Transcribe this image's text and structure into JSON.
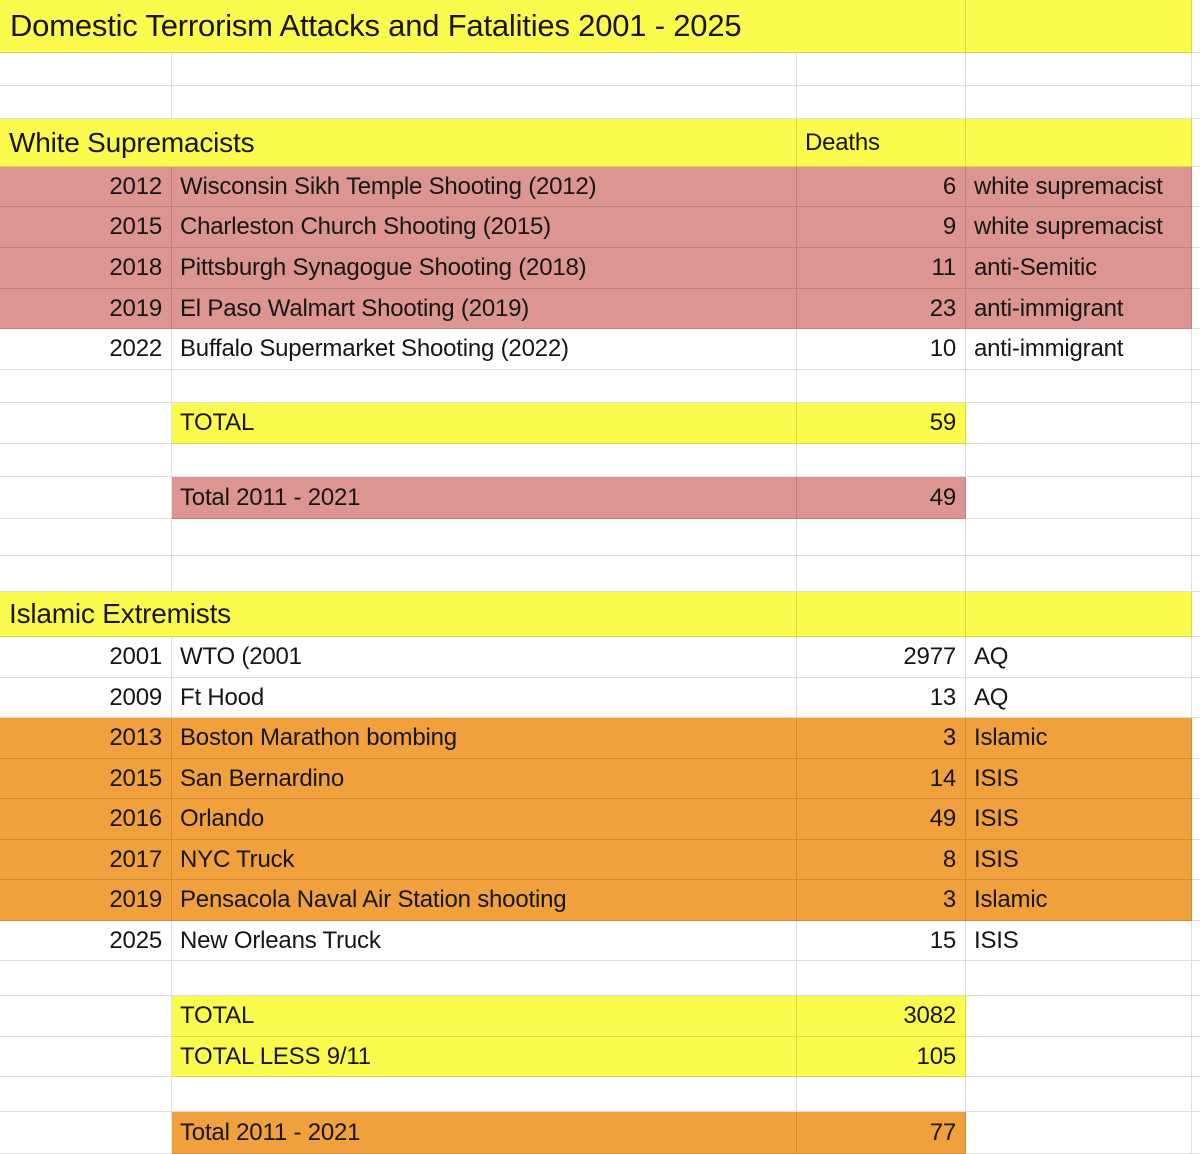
{
  "title": "Domestic Terrorism Attacks and Fatalities 2001 - 2025",
  "columns": {
    "deaths_header": "Deaths"
  },
  "colors": {
    "yellow": "#fbfb4d",
    "pink": "#dc9591",
    "orange": "#f0a03c",
    "white": "#ffffff",
    "grid": "rgba(0,0,0,0.13)",
    "text": "#161616"
  },
  "rows": [
    {
      "kind": "title",
      "label": "Domestic Terrorism Attacks and Fatalities 2001 - 2025",
      "fill": "yellow"
    },
    {
      "kind": "blank",
      "fill": "white"
    },
    {
      "kind": "blank",
      "fill": "white"
    },
    {
      "kind": "section",
      "name": "white-supremacists",
      "label": "White Supremacists",
      "col3": "Deaths",
      "fill": "yellow"
    },
    {
      "kind": "data",
      "year": "2012",
      "event": "Wisconsin Sikh Temple Shooting (2012)",
      "deaths": "6",
      "tag": "white supremacist",
      "fill": "pink"
    },
    {
      "kind": "data",
      "year": "2015",
      "event": "Charleston Church Shooting (2015)",
      "deaths": "9",
      "tag": "white supremacist",
      "fill": "pink"
    },
    {
      "kind": "data",
      "year": "2018",
      "event": "Pittsburgh Synagogue Shooting (2018)",
      "deaths": "11",
      "tag": "anti-Semitic",
      "fill": "pink"
    },
    {
      "kind": "data",
      "year": "2019",
      "event": "El Paso Walmart Shooting (2019)",
      "deaths": "23",
      "tag": "anti-immigrant",
      "fill": "pink"
    },
    {
      "kind": "data",
      "year": "2022",
      "event": "Buffalo Supermarket Shooting (2022)",
      "deaths": "10",
      "tag": "anti-immigrant",
      "fill": "white"
    },
    {
      "kind": "blank",
      "fill": "white"
    },
    {
      "kind": "total",
      "label": "TOTAL",
      "value": "59",
      "fill": "yellow"
    },
    {
      "kind": "blank",
      "fill": "white"
    },
    {
      "kind": "total",
      "label": "Total 2011 - 2021",
      "value": "49",
      "fill": "pink"
    },
    {
      "kind": "blank",
      "fill": "white"
    },
    {
      "kind": "blank",
      "fill": "white"
    },
    {
      "kind": "section",
      "name": "islamic-extremists",
      "label": "Islamic Extremists",
      "col3": "",
      "fill": "yellow"
    },
    {
      "kind": "data",
      "year": "2001",
      "event": "WTO (2001",
      "deaths": "2977",
      "tag": "AQ",
      "fill": "white"
    },
    {
      "kind": "data",
      "year": "2009",
      "event": "Ft Hood",
      "deaths": "13",
      "tag": "AQ",
      "fill": "white"
    },
    {
      "kind": "data",
      "year": "2013",
      "event": "Boston Marathon bombing",
      "deaths": "3",
      "tag": "Islamic",
      "fill": "orange"
    },
    {
      "kind": "data",
      "year": "2015",
      "event": "San Bernardino",
      "deaths": "14",
      "tag": "ISIS",
      "fill": "orange"
    },
    {
      "kind": "data",
      "year": "2016",
      "event": "Orlando",
      "deaths": "49",
      "tag": "ISIS",
      "fill": "orange"
    },
    {
      "kind": "data",
      "year": "2017",
      "event": "NYC Truck",
      "deaths": "8",
      "tag": "ISIS",
      "fill": "orange"
    },
    {
      "kind": "data",
      "year": "2019",
      "event": "Pensacola Naval Air Station shooting",
      "deaths": "3",
      "tag": "Islamic",
      "fill": "orange"
    },
    {
      "kind": "data",
      "year": "2025",
      "event": "New Orleans Truck",
      "deaths": "15",
      "tag": "ISIS",
      "fill": "white"
    },
    {
      "kind": "blank",
      "fill": "white"
    },
    {
      "kind": "total",
      "label": "TOTAL",
      "value": "3082",
      "fill": "yellow"
    },
    {
      "kind": "total",
      "label": "TOTAL LESS 9/11",
      "value": "105",
      "fill": "yellow"
    },
    {
      "kind": "blank",
      "fill": "white"
    },
    {
      "kind": "total",
      "label": "Total 2011 - 2021",
      "value": "77",
      "fill": "orange"
    }
  ]
}
